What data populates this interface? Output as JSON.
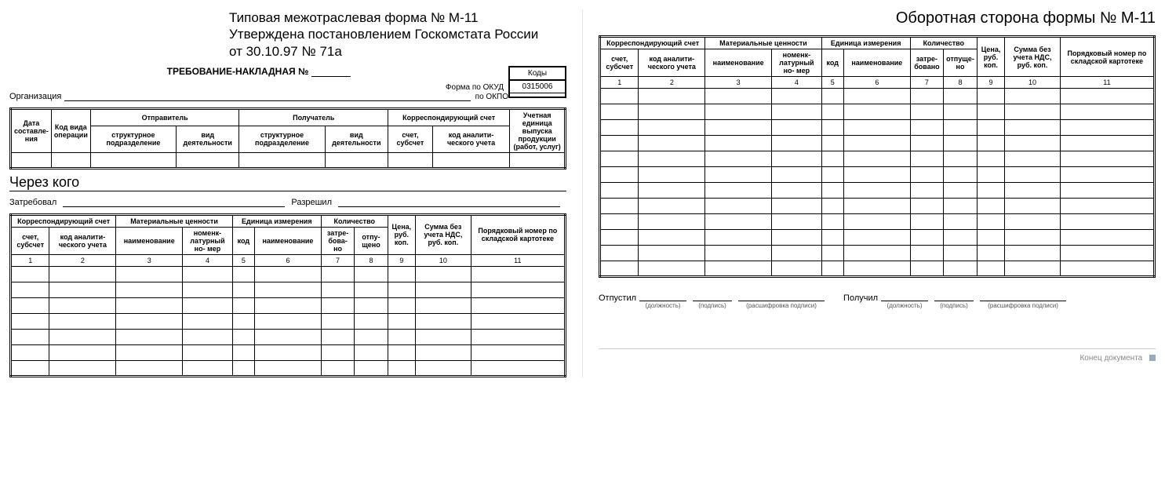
{
  "left": {
    "header_lines": [
      "Типовая межотраслевая форма № М-11",
      "Утверждена постановлением Госкомстата России",
      "от 30.10.97 № 71а"
    ],
    "request_title": "ТРЕБОВАНИЕ-НАКЛАДНАЯ №",
    "codes_label": "Коды",
    "okud_label": "Форма по ОКУД",
    "okud_value": "0315006",
    "okpo_label": "по ОКПО",
    "okpo_value": "",
    "org_label": "Организация",
    "tbl1": {
      "c1": "Дата составле-\nния",
      "c2": "Код вида операции",
      "c3": "Отправитель",
      "c4": "Получатель",
      "c5": "Корреспондирующий счет",
      "c6": "Учетная единица выпуска продукции (работ, услуг)",
      "sub_struct": "структурное подразделение",
      "sub_act": "вид деятельности",
      "sub_acc": "счет, субсчет",
      "sub_code": "код аналити-\nческого учета"
    },
    "through_who": "Через кого",
    "demanded": "Затребовал",
    "allowed": "Разрешил",
    "tbl2": {
      "h_corr": "Корреспондирующий счет",
      "h_mat": "Материальные ценности",
      "h_unit": "Единица измерения",
      "h_qty": "Количество",
      "h_price": "Цена, руб. коп.",
      "h_sum": "Сумма без учета НДС, руб. коп.",
      "h_ord": "Порядковый номер по складской картотеке",
      "s_acc": "счет, субсчет",
      "s_code": "код аналити-\nческого учета",
      "s_name": "наименование",
      "s_nomen": "номенк-\nлатурный но-\nмер",
      "s_ucode": "код",
      "s_uname": "наименование",
      "s_req": "затре-\nбова-\nно",
      "s_rel": "отпу-\nщено",
      "nums": [
        "1",
        "2",
        "3",
        "4",
        "5",
        "6",
        "7",
        "8",
        "9",
        "10",
        "11"
      ],
      "empty_rows": 7
    }
  },
  "right": {
    "title": "Оборотная сторона формы № М-11",
    "tbl": {
      "h_corr": "Корреспондирующий счет",
      "h_mat": "Материальные ценности",
      "h_unit": "Единица измерения",
      "h_qty": "Количество",
      "h_price": "Цена, руб. коп.",
      "h_sum": "Сумма без учета НДС, руб. коп.",
      "h_ord": "Порядковый номер по складской картотеке",
      "s_acc": "счет, субсчет",
      "s_code": "код аналити-\nческого учета",
      "s_name": "наименование",
      "s_nomen": "номенк-\nлатурный но-\nмер",
      "s_ucode": "код",
      "s_uname": "наименование",
      "s_req": "затре-\nбовано",
      "s_rel": "отпуще-\nно",
      "nums": [
        "1",
        "2",
        "3",
        "4",
        "5",
        "6",
        "7",
        "8",
        "9",
        "10",
        "11"
      ],
      "empty_rows": 12
    },
    "released": "Отпустил",
    "received": "Получил",
    "cap_pos": "(должность)",
    "cap_sig": "(подпись)",
    "cap_dec": "(расшифровка подписи)",
    "end_doc": "Конец документа"
  },
  "col_widths_pct": [
    7,
    12,
    12,
    9,
    4,
    12,
    6,
    6,
    5,
    10,
    17
  ]
}
